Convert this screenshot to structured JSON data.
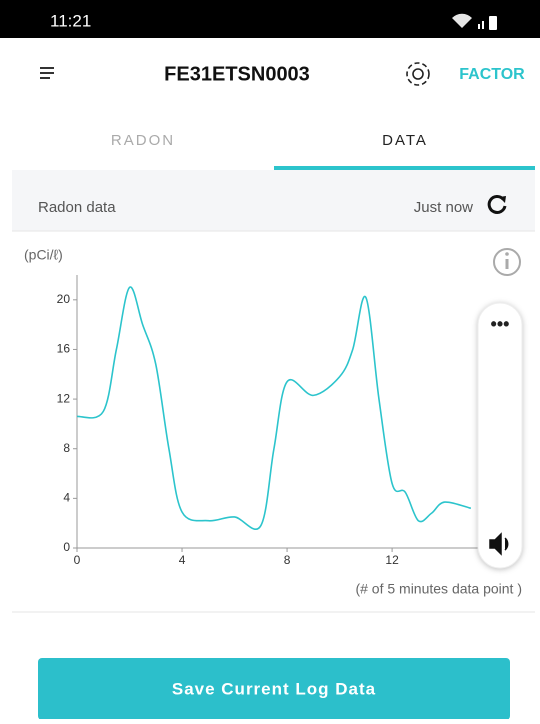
{
  "status_bar": {
    "time": "11:21"
  },
  "header": {
    "title": "FE31ETSN0003",
    "brand": "FACTOR"
  },
  "tabs": [
    "RADON",
    "DATA"
  ],
  "info_bar": {
    "label": "Radon data",
    "updated": "Just now"
  },
  "button": {
    "label": "Save Current Log Data"
  },
  "chart_data": {
    "type": "line",
    "y_label": "(pCi/ℓ)",
    "x_label": "(# of 5 minutes data point )",
    "x": [
      0,
      1,
      1.5,
      2,
      2.5,
      3,
      3.5,
      4,
      5,
      6,
      7,
      7.5,
      8,
      9,
      10,
      10.5,
      11,
      11.5,
      12,
      12.5,
      13,
      13.5,
      14,
      15
    ],
    "values": [
      10.6,
      11,
      16,
      21,
      18,
      14.8,
      8,
      2.9,
      2.2,
      2.5,
      1.8,
      8,
      13.4,
      12.3,
      13.8,
      16,
      20.2,
      12,
      5.2,
      4.5,
      2.2,
      2.8,
      3.7,
      3.2
    ],
    "color": "#2cc4cc",
    "xlim": [
      0,
      15.5
    ],
    "ylim": [
      0,
      22
    ],
    "xticks": [
      0,
      4,
      8,
      12
    ],
    "yticks": [
      0,
      4,
      8,
      12,
      16,
      20
    ]
  }
}
